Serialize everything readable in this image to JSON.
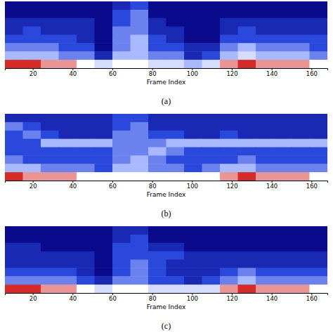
{
  "chart_data": [
    {
      "type": "heatmap",
      "title": "(a)",
      "x_label": "Frame Index",
      "xlim": [
        6,
        168
      ],
      "xticks": [
        20,
        40,
        60,
        80,
        100,
        120,
        140,
        160
      ],
      "tick_labels": "x",
      "bins": [
        6,
        15,
        24,
        33,
        42,
        51,
        60,
        69,
        78,
        87,
        96,
        105,
        114,
        123,
        132,
        141,
        150,
        159,
        168
      ],
      "cells": [
        [
          1,
          1,
          1,
          1,
          1,
          1,
          2,
          3,
          1,
          1,
          1,
          1,
          1,
          1,
          1,
          1,
          1,
          1
        ],
        [
          1,
          1,
          1,
          1,
          1,
          1,
          3,
          4,
          1,
          1,
          1,
          1,
          1,
          1,
          1,
          1,
          1,
          1
        ],
        [
          2,
          2,
          2,
          2,
          2,
          1,
          3,
          4,
          2,
          1,
          1,
          1,
          2,
          2,
          2,
          2,
          2,
          2
        ],
        [
          2,
          3,
          2,
          2,
          2,
          1,
          4,
          4,
          2,
          2,
          1,
          1,
          2,
          3,
          2,
          2,
          2,
          2
        ],
        [
          3,
          3,
          3,
          3,
          2,
          1,
          4,
          5,
          3,
          2,
          1,
          1,
          3,
          3,
          3,
          3,
          3,
          3
        ],
        [
          4,
          4,
          4,
          3,
          3,
          1,
          4,
          5,
          3,
          3,
          2,
          2,
          4,
          5,
          4,
          4,
          4,
          3
        ],
        [
          5,
          5,
          5,
          4,
          4,
          2,
          5,
          5,
          4,
          4,
          2,
          3,
          5,
          6,
          5,
          5,
          5,
          4
        ],
        [
          9,
          9,
          8,
          8,
          7,
          6,
          7,
          7,
          6,
          6,
          5,
          6,
          8,
          9,
          8,
          8,
          8,
          7
        ]
      ]
    },
    {
      "type": "heatmap",
      "title": "(b)",
      "x_label": "Frame Index",
      "xlim": [
        6,
        168
      ],
      "xticks": [
        20,
        40,
        60,
        80,
        100,
        120,
        140,
        160
      ],
      "tick_labels": "x",
      "bins": [
        6,
        15,
        24,
        33,
        42,
        51,
        60,
        69,
        78,
        87,
        96,
        105,
        114,
        123,
        132,
        141,
        150,
        159,
        168
      ],
      "cells": [
        [
          2,
          2,
          2,
          2,
          2,
          2,
          3,
          3,
          2,
          2,
          2,
          2,
          2,
          2,
          2,
          2,
          2,
          2
        ],
        [
          4,
          3,
          2,
          2,
          2,
          2,
          3,
          4,
          2,
          2,
          2,
          2,
          2,
          2,
          2,
          2,
          2,
          2
        ],
        [
          3,
          4,
          3,
          2,
          2,
          2,
          4,
          4,
          3,
          3,
          2,
          2,
          3,
          2,
          2,
          2,
          2,
          2
        ],
        [
          3,
          3,
          5,
          5,
          5,
          5,
          4,
          4,
          4,
          5,
          5,
          5,
          5,
          5,
          5,
          5,
          5,
          5
        ],
        [
          3,
          3,
          3,
          3,
          3,
          3,
          4,
          4,
          5,
          4,
          3,
          3,
          3,
          3,
          3,
          3,
          3,
          3
        ],
        [
          4,
          3,
          3,
          3,
          3,
          3,
          4,
          5,
          4,
          3,
          3,
          3,
          3,
          4,
          3,
          3,
          3,
          3
        ],
        [
          5,
          5,
          4,
          4,
          4,
          3,
          5,
          5,
          4,
          4,
          3,
          4,
          5,
          5,
          4,
          4,
          4,
          4
        ],
        [
          9,
          8,
          8,
          8,
          7,
          7,
          7,
          7,
          7,
          7,
          7,
          7,
          8,
          9,
          8,
          8,
          8,
          7
        ]
      ]
    },
    {
      "type": "heatmap",
      "title": "(c)",
      "x_label": "Frame Index",
      "xlim": [
        6,
        168
      ],
      "xticks": [
        20,
        40,
        60,
        80,
        100,
        120,
        140,
        160
      ],
      "tick_labels": "x",
      "bins": [
        6,
        15,
        24,
        33,
        42,
        51,
        60,
        69,
        78,
        87,
        96,
        105,
        114,
        123,
        132,
        141,
        150,
        159,
        168
      ],
      "cells": [
        [
          1,
          1,
          1,
          1,
          1,
          1,
          2,
          2,
          1,
          1,
          1,
          1,
          1,
          1,
          1,
          1,
          1,
          1
        ],
        [
          1,
          1,
          1,
          1,
          1,
          1,
          2,
          3,
          1,
          1,
          1,
          1,
          1,
          1,
          1,
          1,
          1,
          1
        ],
        [
          2,
          2,
          1,
          1,
          1,
          1,
          3,
          3,
          2,
          2,
          1,
          1,
          1,
          1,
          1,
          1,
          1,
          1
        ],
        [
          2,
          2,
          2,
          2,
          2,
          1,
          3,
          3,
          3,
          3,
          2,
          2,
          2,
          2,
          2,
          2,
          2,
          2
        ],
        [
          2,
          2,
          2,
          2,
          2,
          1,
          3,
          4,
          3,
          2,
          2,
          2,
          2,
          2,
          2,
          2,
          2,
          2
        ],
        [
          3,
          3,
          3,
          3,
          2,
          1,
          3,
          4,
          3,
          2,
          2,
          2,
          3,
          4,
          3,
          3,
          3,
          3
        ],
        [
          4,
          4,
          4,
          4,
          3,
          2,
          4,
          4,
          3,
          3,
          2,
          3,
          4,
          5,
          4,
          4,
          4,
          4
        ],
        [
          9,
          9,
          8,
          8,
          7,
          6,
          7,
          7,
          6,
          6,
          6,
          6,
          8,
          9,
          8,
          8,
          8,
          7
        ]
      ]
    }
  ]
}
